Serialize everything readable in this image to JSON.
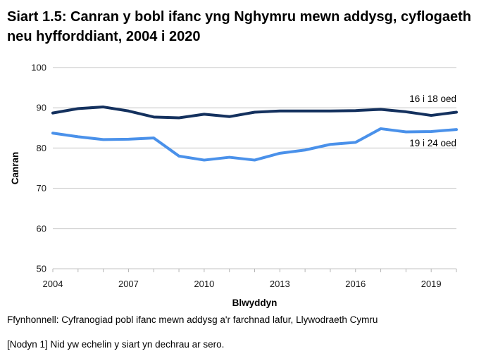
{
  "title": "Siart 1.5: Canran y bobl ifanc yng Nghymru mewn addysg, cyflogaeth neu hyfforddiant, 2004 i 2020",
  "footer": {
    "source": "Ffynhonnell: Cyfranogiad pobl ifanc mewn addysg a'r farchnad lafur, Llywodraeth Cymru",
    "note": "[Nodyn 1] Nid yw echelin y siart yn dechrau ar sero."
  },
  "chart_data": {
    "type": "line",
    "title": "Siart 1.5: Canran y bobl ifanc yng Nghymru mewn addysg, cyflogaeth neu hyfforddiant, 2004 i 2020",
    "xlabel": "Blwyddyn",
    "ylabel": "Canran",
    "x": [
      2004,
      2005,
      2006,
      2007,
      2008,
      2009,
      2010,
      2011,
      2012,
      2013,
      2014,
      2015,
      2016,
      2017,
      2018,
      2019,
      2020
    ],
    "series": [
      {
        "id": "16-18",
        "name": "16 i 18 oed",
        "color": "#14315e",
        "values": [
          88.7,
          89.8,
          90.2,
          89.2,
          87.7,
          87.5,
          88.4,
          87.8,
          88.9,
          89.2,
          89.2,
          89.2,
          89.3,
          89.6,
          89.0,
          88.1,
          88.9
        ]
      },
      {
        "id": "19-24",
        "name": "19 i 24 oed",
        "color": "#4a91ea",
        "values": [
          83.7,
          82.8,
          82.1,
          82.2,
          82.5,
          78.0,
          77.0,
          77.7,
          77.0,
          78.7,
          79.5,
          80.9,
          81.4,
          84.8,
          84.0,
          84.1,
          84.6
        ]
      }
    ],
    "xlim": [
      2004,
      2020
    ],
    "ylim": [
      50,
      100
    ],
    "y_ticks": [
      50,
      60,
      70,
      80,
      90,
      100
    ],
    "x_tick_labels": [
      2004,
      2007,
      2010,
      2013,
      2016,
      2019
    ],
    "grid": true,
    "grid_color": "#c3c3c3",
    "legend_position": "inline-right",
    "axis_starts_at_zero": false
  }
}
